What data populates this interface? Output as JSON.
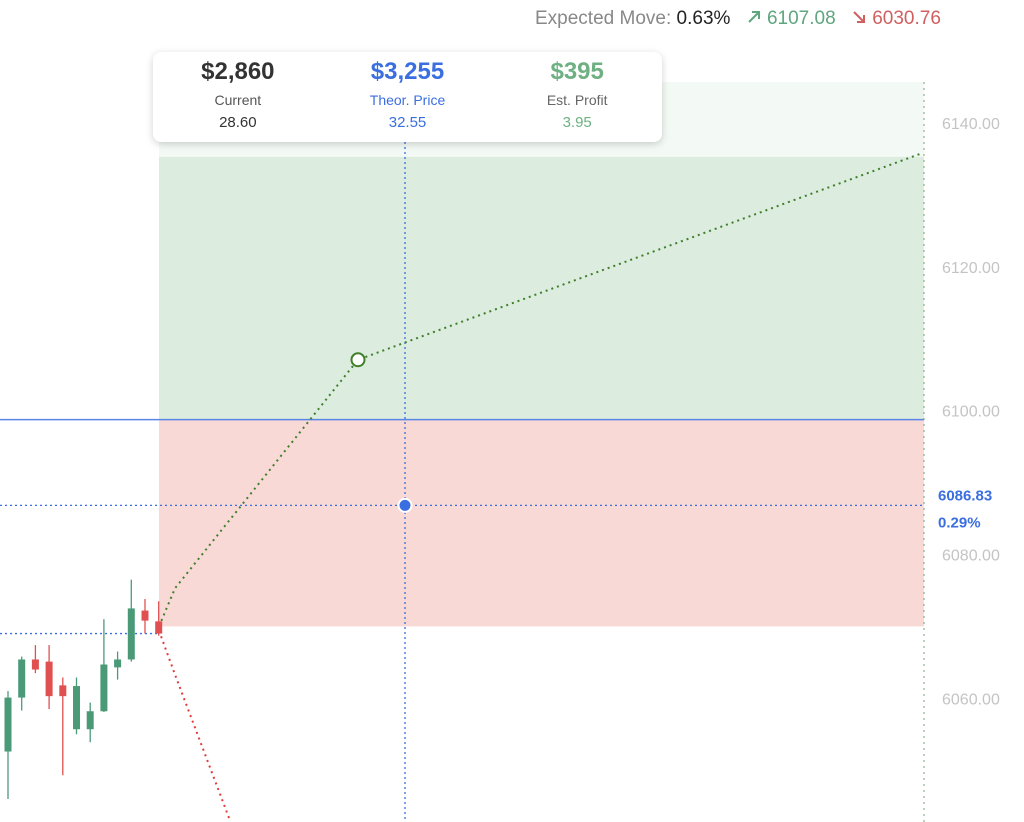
{
  "header": {
    "label": "Expected Move:",
    "percent": "0.63%",
    "up": "6107.08",
    "down": "6030.76"
  },
  "tooltip": [
    {
      "amount": "$2,860",
      "label": "Current",
      "price": "28.60"
    },
    {
      "amount": "$3,255",
      "label": "Theor. Price",
      "price": "32.55"
    },
    {
      "amount": "$395",
      "label": "Est. Profit",
      "price": "3.95"
    }
  ],
  "chart_data": {
    "type": "candlestick",
    "categories": [
      null,
      null,
      null,
      null,
      null,
      null,
      null,
      null,
      null,
      null,
      null,
      null
    ],
    "open": [
      6052.6,
      6060.1,
      6065.4,
      6065.1,
      6061.8,
      6055.7,
      6055.7,
      6058.2,
      6064.3,
      6065.4,
      6072.2,
      6070.7
    ],
    "close": [
      6060.1,
      6065.4,
      6064.0,
      6060.3,
      6060.3,
      6061.7,
      6058.2,
      6064.7,
      6065.4,
      6072.5,
      6070.8,
      6069.0
    ],
    "high": [
      6061.0,
      6065.8,
      6067.4,
      6067.4,
      6062.9,
      6062.9,
      6059.4,
      6071.0,
      6066.5,
      6076.5,
      6073.8,
      6073.5
    ],
    "low": [
      6046.0,
      6058.3,
      6063.5,
      6058.5,
      6049.3,
      6055.0,
      6053.9,
      6058.1,
      6062.6,
      6065.1,
      6069.0,
      6068.7
    ],
    "up_color": "#4a9a78",
    "down_color": "#e05050",
    "ylim": [
      6042.8,
      6157.1
    ],
    "yticks": [
      {
        "value": 6060,
        "label": "6060.00"
      },
      {
        "value": 6080,
        "label": "6080.00"
      },
      {
        "value": 6100,
        "label": "6100.00"
      },
      {
        "value": 6120,
        "label": "6120.00"
      },
      {
        "value": 6140,
        "label": "6140.00"
      }
    ],
    "current_price": 6069.0,
    "breakeven": 6098.75,
    "target": {
      "value": 6086.83,
      "label": "6086.83",
      "change": "0.29%"
    },
    "profit_zone": [
      6098.75,
      6135.3
    ],
    "upper_zone": [
      6135.3,
      6145.7
    ],
    "loss_zone": [
      6070.0,
      6098.75
    ],
    "projection_up": [
      6070.0,
      6075.3,
      6107.08,
      6135.8
    ],
    "projection_down": [
      6069.4,
      6063.3,
      6043.0
    ]
  }
}
